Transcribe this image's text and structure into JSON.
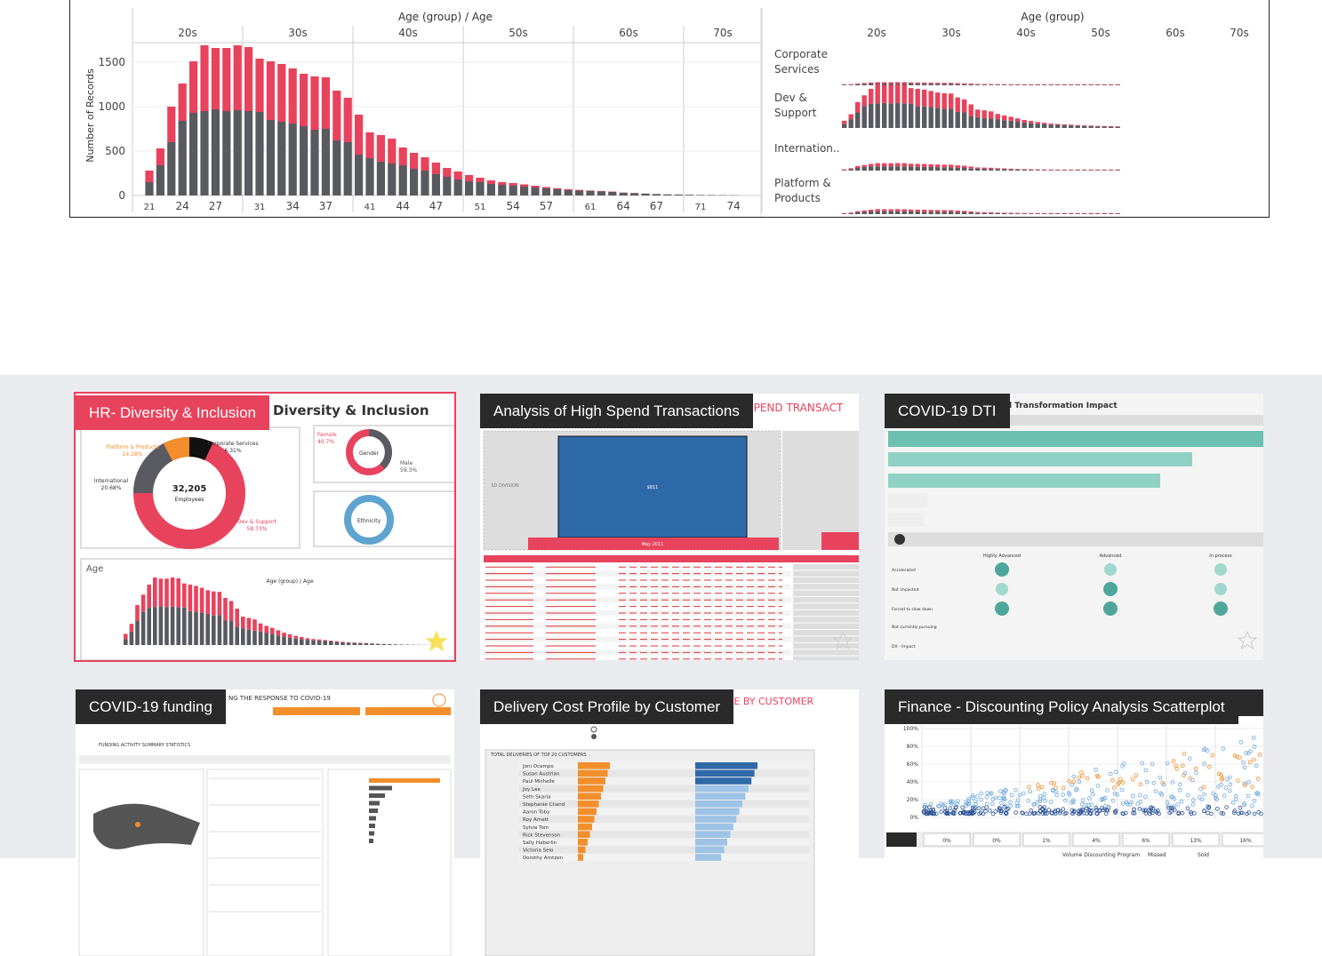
{
  "viz": {
    "left": {
      "header": "Age (group)  /  Age",
      "groups": [
        "20s",
        "30s",
        "40s",
        "50s",
        "60s",
        "70s"
      ],
      "yaxis_title": "Number of Records",
      "yticks": [
        "1500",
        "1000",
        "500",
        "0"
      ],
      "xticks": [
        "21",
        "24",
        "27",
        "31",
        "34",
        "37",
        "41",
        "44",
        "47",
        "51",
        "54",
        "57",
        "61",
        "64",
        "67",
        "71",
        "74"
      ]
    },
    "right": {
      "header": "Age (group)",
      "groups": [
        "20s",
        "30s",
        "40s",
        "50s",
        "60s",
        "70s"
      ],
      "rows": [
        {
          "line1": "Corporate",
          "line2": "Services"
        },
        {
          "line1": "Dev &",
          "line2": "Support"
        },
        {
          "line1": "Internation..",
          "line2": ""
        },
        {
          "line1": "Platform &",
          "line2": "Products"
        }
      ]
    }
  },
  "chart_data": {
    "type": "bar",
    "stacked": true,
    "x": [
      21,
      22,
      23,
      24,
      25,
      26,
      27,
      28,
      29,
      30,
      31,
      32,
      33,
      34,
      35,
      36,
      37,
      38,
      39,
      40,
      41,
      42,
      43,
      44,
      45,
      46,
      47,
      48,
      49,
      50,
      51,
      52,
      53,
      54,
      55,
      56,
      57,
      58,
      59,
      60,
      61,
      62,
      63,
      64,
      65,
      66,
      67,
      68,
      69,
      70,
      71,
      72,
      73,
      74
    ],
    "xlabel": "Age (group) / Age",
    "ylabel": "Number of Records",
    "ylim": [
      0,
      1700
    ],
    "grid": true,
    "series": [
      {
        "color": "#595a60",
        "values": [
          150,
          340,
          600,
          840,
          930,
          950,
          970,
          950,
          960,
          950,
          940,
          850,
          830,
          810,
          780,
          740,
          750,
          620,
          600,
          460,
          420,
          380,
          360,
          340,
          300,
          280,
          240,
          210,
          180,
          160,
          150,
          130,
          120,
          110,
          100,
          90,
          80,
          70,
          60,
          55,
          50,
          45,
          40,
          30,
          25,
          20,
          15,
          12,
          10,
          8,
          6,
          5,
          4,
          3
        ]
      },
      {
        "color": "#e8435d",
        "values": [
          130,
          190,
          400,
          420,
          580,
          740,
          690,
          710,
          730,
          720,
          600,
          660,
          650,
          620,
          590,
          600,
          580,
          560,
          500,
          450,
          290,
          300,
          280,
          200,
          180,
          150,
          130,
          100,
          90,
          70,
          50,
          40,
          30,
          30,
          25,
          20,
          15,
          12,
          10,
          8,
          6,
          5,
          4,
          3,
          3,
          2,
          2,
          1,
          1,
          1,
          0,
          0,
          0,
          0
        ]
      }
    ]
  },
  "gallery": {
    "cards": [
      {
        "label": "HR- Diversity & Inclusion",
        "thumb_title": "Diversity & Inclusion",
        "total": "32,205",
        "total_label": "Employees",
        "segments": [
          {
            "name": "Corporate Services",
            "pct": "6.31%"
          },
          {
            "name": "Dev & Support",
            "pct": "58.73%"
          },
          {
            "name": "International",
            "pct": "20.68%"
          },
          {
            "name": "Platform & Products",
            "pct": "14.28%"
          }
        ],
        "gender": "Gender",
        "female": "Female",
        "female_pct": "40.7%",
        "male": "Male",
        "male_pct": "59.3%",
        "ethnicity": "Ethnicity",
        "age": "Age",
        "age_header": "Age (group)  /  Age"
      },
      {
        "label": "Analysis of High Spend Transactions",
        "thumb_title": "SPEND TRANSACT",
        "division": "SD DIVISION",
        "cell_value": "$811",
        "month": "May 2011"
      },
      {
        "label": "COVID-19 DTI",
        "thumb_title": "l Transformation Impact",
        "cols": [
          "Highly Advanced",
          "Advanced",
          "In process"
        ],
        "rows": [
          "Accelerated",
          "Not impacted",
          "Forced to slow down",
          "Not currently pursuing",
          "DX - Impact"
        ]
      },
      {
        "label": "COVID-19 funding",
        "thumb_title": "NG THE RESPONSE TO COVID-19",
        "sub": "FUNDING ACTIVITY SUMMARY STATISTICS"
      },
      {
        "label": "Delivery Cost Profile by Customer",
        "thumb_title": "ILE BY CUSTOMER",
        "table_title": "TOTAL DELIVERIES OF TOP 20 CUSTOMERS",
        "customers": [
          "Joni Ocampo",
          "Susan Austrian",
          "Paul Michelle",
          "Joy Lee",
          "Seth Skaria",
          "Stephanie Chand",
          "Aaron Toby",
          "Roy Arnett",
          "Sylvia Tom",
          "Rick Stevenson",
          "Sally Haberlin",
          "Victoria Selo",
          "Dorothy Arntzen"
        ]
      },
      {
        "label": "Finance - Discounting Policy Analysis Scatterplot",
        "yticks": [
          "100%",
          "80%",
          "60%",
          "40%",
          "20%",
          "0%"
        ],
        "footer_vals": [
          "0%",
          "0%",
          "1%",
          "4%",
          "6%",
          "13%",
          "16%"
        ],
        "footer_title": "Volume Discounting Program",
        "legend": [
          "Missed",
          "Sold"
        ]
      }
    ]
  }
}
